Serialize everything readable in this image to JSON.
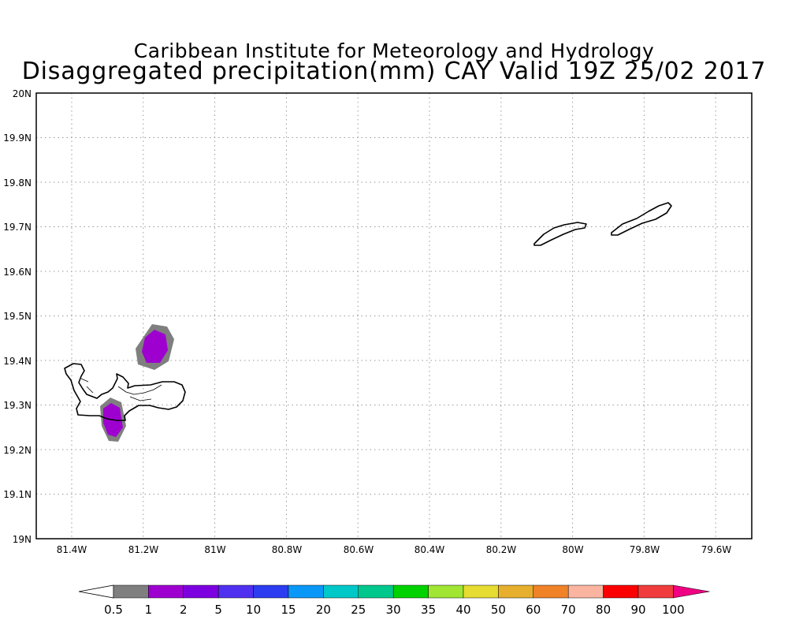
{
  "header": {
    "institute": "Caribbean Institute for Meteorology and Hydrology",
    "product": "Disaggregated precipitation(mm) CAY Valid 19Z 25/02 2017"
  },
  "map": {
    "lat_labels": [
      "20N",
      "19.9N",
      "19.8N",
      "19.7N",
      "19.6N",
      "19.5N",
      "19.4N",
      "19.3N",
      "19.2N",
      "19.1N",
      "19N"
    ],
    "lon_labels": [
      "81.4W",
      "81.2W",
      "81W",
      "80.8W",
      "80.6W",
      "80.4W",
      "80.2W",
      "80W",
      "79.8W",
      "79.6W"
    ],
    "grid": true,
    "features": [
      "Grand Cayman",
      "Little Cayman",
      "Cayman Brac"
    ]
  },
  "legend": {
    "labels": [
      "0.5",
      "1",
      "2",
      "5",
      "10",
      "15",
      "20",
      "25",
      "30",
      "35",
      "40",
      "50",
      "60",
      "70",
      "80",
      "90",
      "100"
    ],
    "colors": [
      "#ffffff",
      "#7f7f7f",
      "#9e00d0",
      "#7c00e0",
      "#5030f0",
      "#2c3cf0",
      "#0a98f8",
      "#00c8c8",
      "#00c88c",
      "#00d200",
      "#a0e632",
      "#e6dc32",
      "#e6af2d",
      "#f08228",
      "#fab4a0",
      "#fa0000",
      "#f03c3c",
      "#f00082"
    ]
  },
  "precip_areas": [
    {
      "name": "north-cell",
      "max_class": "1-2 mm",
      "fill": "#9e00d0"
    },
    {
      "name": "south-cell",
      "max_class": "1-2 mm",
      "fill": "#9e00d0"
    }
  ]
}
